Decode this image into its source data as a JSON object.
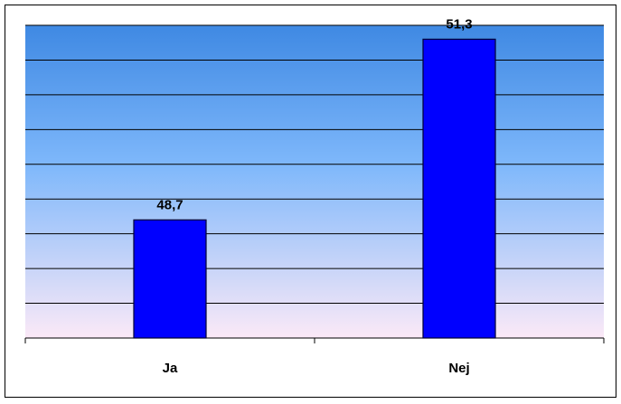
{
  "chart_data": {
    "type": "bar",
    "categories": [
      "Ja",
      "Nej"
    ],
    "values": [
      48.7,
      51.3
    ],
    "value_labels": [
      "48,7",
      "51,3"
    ],
    "color": "#0000ff",
    "ylim": [
      47,
      51.5
    ],
    "yticks": [
      47,
      47.5,
      48,
      48.5,
      49,
      49.5,
      50,
      50.5,
      51,
      51.5
    ],
    "grid": true
  }
}
